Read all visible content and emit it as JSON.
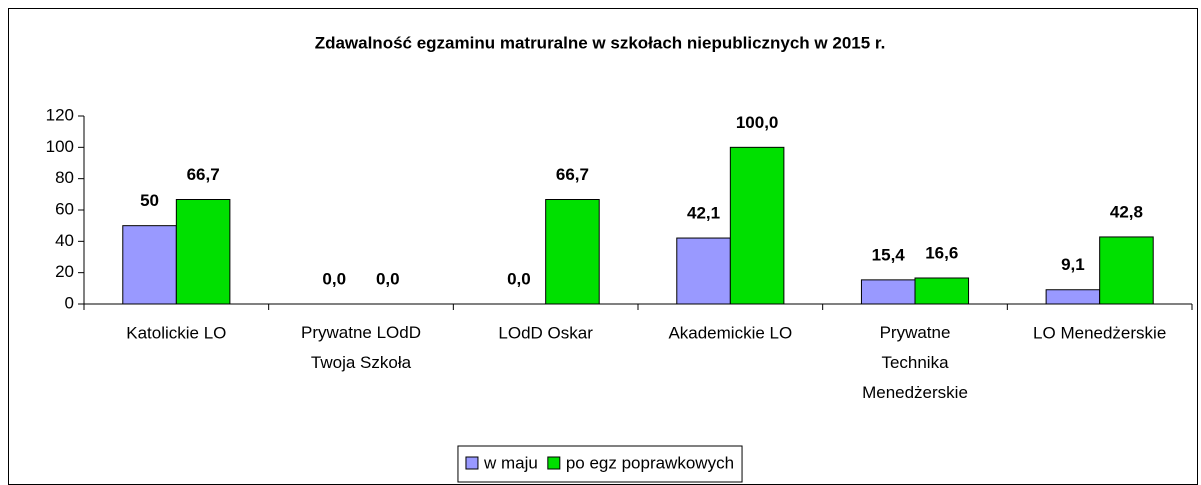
{
  "chart_data": {
    "type": "bar",
    "title": "Zdawalność egzaminu matruralne w szkołach niepublicznych w 2015 r.",
    "categories": [
      "Katolickie LO",
      "Prywatne LOdD Twoja Szkoła",
      "LOdD Oskar",
      "Akademickie LO",
      "Prywatne Technika Menedżerskie",
      "LO Menedżerskie"
    ],
    "series": [
      {
        "name": "w maju",
        "color": "#9999ff",
        "values": [
          50,
          0,
          0,
          42.1,
          15.4,
          9.1
        ],
        "value_labels": [
          "50",
          "0,0",
          "0,0",
          "42,1",
          "15,4",
          "9,1"
        ]
      },
      {
        "name": "po egz poprawkowych",
        "color": "#00e000",
        "values": [
          66.7,
          0,
          66.7,
          100,
          16.6,
          42.8
        ],
        "value_labels": [
          "66,7",
          "0,0",
          "66,7",
          "100,0",
          "16,6",
          "42,8"
        ]
      }
    ],
    "ylim": [
      0,
      120
    ],
    "yticks": [
      0,
      20,
      40,
      60,
      80,
      100,
      120
    ],
    "grid": false,
    "legend": "bottom"
  }
}
